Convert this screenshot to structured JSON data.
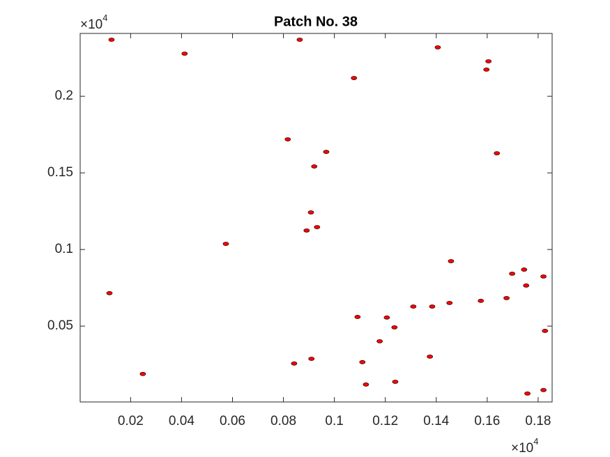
{
  "chart_data": {
    "type": "scatter",
    "title": "Patch No. 38",
    "x_scale_label": {
      "base": "×10",
      "exponent": "4"
    },
    "y_scale_label": {
      "base": "×10",
      "exponent": "4"
    },
    "xlim": [
      0.0002,
      0.1855
    ],
    "ylim": [
      0.0005,
      0.241
    ],
    "xticks": [
      0.02,
      0.04,
      0.06,
      0.08,
      0.1,
      0.12,
      0.14,
      0.16,
      0.18
    ],
    "yticks": [
      0.05,
      0.1,
      0.15,
      0.2
    ],
    "series": [
      {
        "color": "#ff0000",
        "x": [
          0.0125,
          0.0412,
          0.0864,
          0.1077,
          0.0817,
          0.0968,
          0.0921,
          0.0891,
          0.0932,
          0.0908,
          0.0574,
          0.0117,
          0.0248,
          0.1638,
          0.131,
          0.1384,
          0.1206,
          0.1236,
          0.1091,
          0.1452,
          0.1575,
          0.1676,
          0.1698,
          0.1745,
          0.1753,
          0.1821,
          0.1827,
          0.0842,
          0.091,
          0.111,
          0.1239,
          0.1124,
          0.1375,
          0.1758,
          0.1821,
          0.1458,
          0.1605,
          0.1597,
          0.1178,
          0.1406
        ],
        "y": [
          0.2369,
          0.2278,
          0.2369,
          0.2119,
          0.1719,
          0.1637,
          0.1542,
          0.1124,
          0.1146,
          0.1242,
          0.1037,
          0.0715,
          0.0188,
          0.1628,
          0.0628,
          0.0628,
          0.0556,
          0.0492,
          0.056,
          0.0651,
          0.0665,
          0.0683,
          0.0842,
          0.0869,
          0.0765,
          0.0824,
          0.0469,
          0.0256,
          0.0287,
          0.0265,
          0.0137,
          0.0119,
          0.0301,
          0.006,
          0.0083,
          0.0924,
          0.2228,
          0.2174,
          0.0401,
          0.2319
        ]
      }
    ]
  }
}
